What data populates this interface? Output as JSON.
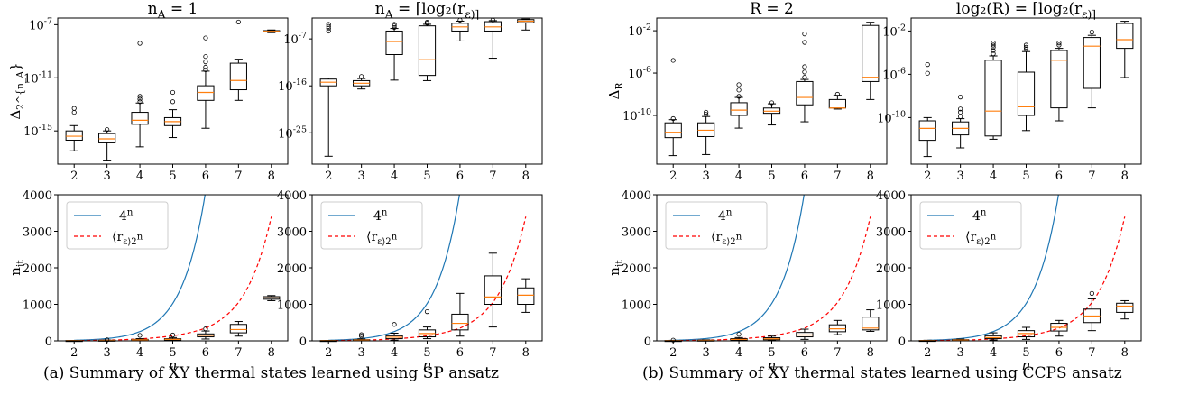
{
  "figure": {
    "captions": [
      "(a) Summary of XY thermal states learned using SP ansatz",
      "(b) Summary of XY thermal states learned using CCPS ansatz"
    ],
    "x_categories": [
      "2",
      "3",
      "4",
      "5",
      "6",
      "7",
      "8"
    ],
    "legend_labels": [
      "4^n",
      "⟨r_ε⟩2^n"
    ],
    "colors": {
      "box": "#000000",
      "median": "#ff7f0e",
      "line_4n": "#1f77b4",
      "line_r": "#ff0000",
      "outlier": "#000000"
    }
  },
  "chart_data": [
    {
      "id": "a-top-left",
      "type": "boxplot",
      "title": "n_A = 1",
      "xlabel": "",
      "ylabel": "Δ_{2^{n_A}}",
      "yscale": "log",
      "ylim_log10": [
        -17.5,
        -6.5
      ],
      "yticks": [
        {
          "exp": -15,
          "label": "10^-15"
        },
        {
          "exp": -11,
          "label": "10^-11"
        },
        {
          "exp": -7,
          "label": "10^-7"
        }
      ],
      "categories": [
        "2",
        "3",
        "4",
        "5",
        "6",
        "7",
        "8"
      ],
      "boxes_log10": [
        {
          "x": 2,
          "whislo": -16.5,
          "q1": -15.7,
          "med": -15.4,
          "q3": -15.0,
          "whishi": -14.6,
          "fliers": [
            -13.3,
            -13.6
          ]
        },
        {
          "x": 3,
          "whislo": -17.2,
          "q1": -15.9,
          "med": -15.6,
          "q3": -15.2,
          "whishi": -15.0,
          "fliers": [
            -14.9
          ]
        },
        {
          "x": 4,
          "whislo": -16.2,
          "q1": -14.5,
          "med": -14.2,
          "q3": -13.6,
          "whishi": -12.9,
          "fliers": [
            -12.8,
            -12.6,
            -12.4,
            -8.4
          ]
        },
        {
          "x": 5,
          "whislo": -15.5,
          "q1": -14.6,
          "med": -14.3,
          "q3": -14.0,
          "whishi": -13.4,
          "fliers": [
            -12.8,
            -12.1
          ]
        },
        {
          "x": 6,
          "whislo": -14.8,
          "q1": -12.7,
          "med": -12.1,
          "q3": -11.6,
          "whishi": -10.5,
          "fliers": [
            -10.4,
            -10.2,
            -9.8,
            -9.4,
            -8.0
          ]
        },
        {
          "x": 7,
          "whislo": -12.7,
          "q1": -11.9,
          "med": -11.2,
          "q3": -9.9,
          "whishi": -9.6,
          "fliers": [
            -6.8
          ]
        },
        {
          "x": 8,
          "whislo": -7.6,
          "q1": -7.55,
          "med": -7.5,
          "q3": -7.45,
          "whishi": -7.4,
          "fliers": []
        }
      ]
    },
    {
      "id": "a-top-right",
      "type": "boxplot",
      "title": "n_A = ⌈log₂(r_ε)⌉",
      "xlabel": "",
      "ylabel": "",
      "yscale": "log",
      "ylim_log10": [
        -31,
        -3
      ],
      "yticks": [
        {
          "exp": -25,
          "label": "10^-25"
        },
        {
          "exp": -16,
          "label": "10^-16"
        },
        {
          "exp": -7,
          "label": "10^-7"
        }
      ],
      "categories": [
        "2",
        "3",
        "4",
        "5",
        "6",
        "7",
        "8"
      ],
      "boxes_log10": [
        {
          "x": 2,
          "whislo": -29.5,
          "q1": -16.0,
          "med": -15.3,
          "q3": -14.7,
          "whishi": -14.5,
          "fliers": [
            -5.5,
            -5.0,
            -4.6,
            -4.2
          ]
        },
        {
          "x": 3,
          "whislo": -16.6,
          "q1": -16.0,
          "med": -15.5,
          "q3": -15.0,
          "whishi": -14.6,
          "fliers": [
            -14.2
          ]
        },
        {
          "x": 4,
          "whislo": -14.9,
          "q1": -10.0,
          "med": -7.5,
          "q3": -5.5,
          "whishi": -5.0,
          "fliers": [
            -4.8,
            -4.5,
            -4.2
          ]
        },
        {
          "x": 5,
          "whislo": -15.0,
          "q1": -14.0,
          "med": -11.0,
          "q3": -4.5,
          "whishi": -4.2,
          "fliers": [
            -4.0,
            -3.8
          ]
        },
        {
          "x": 6,
          "whislo": -7.4,
          "q1": -5.5,
          "med": -4.7,
          "q3": -4.0,
          "whishi": -3.6,
          "fliers": [
            -3.4
          ]
        },
        {
          "x": 7,
          "whislo": -10.7,
          "q1": -5.5,
          "med": -4.7,
          "q3": -3.7,
          "whishi": -3.5,
          "fliers": [
            -3.4
          ]
        },
        {
          "x": 8,
          "whislo": -5.3,
          "q1": -3.9,
          "med": -3.6,
          "q3": -3.3,
          "whishi": -3.2,
          "fliers": []
        }
      ]
    },
    {
      "id": "b-top-left",
      "type": "boxplot",
      "title": "R = 2",
      "xlabel": "",
      "ylabel": "Δ_R",
      "yscale": "log",
      "ylim_log10": [
        -14.6,
        -0.8
      ],
      "yticks": [
        {
          "exp": -10,
          "label": "10^-10"
        },
        {
          "exp": -6,
          "label": "10^-6"
        },
        {
          "exp": -2,
          "label": "10^-2"
        }
      ],
      "categories": [
        "2",
        "3",
        "4",
        "5",
        "6",
        "7",
        "8"
      ],
      "boxes_log10": [
        {
          "x": 2,
          "whislo": -13.8,
          "q1": -12.1,
          "med": -11.6,
          "q3": -10.7,
          "whishi": -10.4,
          "fliers": [
            -10.3,
            -4.8
          ]
        },
        {
          "x": 3,
          "whislo": -13.7,
          "q1": -12.0,
          "med": -11.4,
          "q3": -10.7,
          "whishi": -10.1,
          "fliers": [
            -9.9,
            -9.7
          ]
        },
        {
          "x": 4,
          "whislo": -11.2,
          "q1": -10.0,
          "med": -9.5,
          "q3": -8.8,
          "whishi": -8.3,
          "fliers": [
            -8.2,
            -7.6,
            -7.1
          ]
        },
        {
          "x": 5,
          "whislo": -10.9,
          "q1": -9.8,
          "med": -9.6,
          "q3": -9.3,
          "whishi": -8.9,
          "fliers": [
            -8.8
          ]
        },
        {
          "x": 6,
          "whislo": -10.6,
          "q1": -9.0,
          "med": -8.3,
          "q3": -6.8,
          "whishi": -6.6,
          "fliers": [
            -6.4,
            -5.9,
            -5.4,
            -3.1,
            -2.3
          ]
        },
        {
          "x": 7,
          "whislo": -9.4,
          "q1": -9.3,
          "med": -9.3,
          "q3": -8.5,
          "whishi": -8.1,
          "fliers": [
            -8.0
          ]
        },
        {
          "x": 8,
          "whislo": -8.5,
          "q1": -6.8,
          "med": -6.4,
          "q3": -1.5,
          "whishi": -1.2,
          "fliers": []
        }
      ]
    },
    {
      "id": "b-top-right",
      "type": "boxplot",
      "title": "log₂(R) = ⌈log₂(r_ε)⌉",
      "xlabel": "",
      "ylabel": "",
      "yscale": "log",
      "ylim_log10": [
        -14.3,
        -0.8
      ],
      "yticks": [
        {
          "exp": -10,
          "label": "10^-10"
        },
        {
          "exp": -6,
          "label": "10^-6"
        },
        {
          "exp": -2,
          "label": "10^-2"
        }
      ],
      "categories": [
        "2",
        "3",
        "4",
        "5",
        "6",
        "7",
        "8"
      ],
      "boxes_log10": [
        {
          "x": 2,
          "whislo": -13.6,
          "q1": -12.1,
          "med": -11.0,
          "q3": -10.3,
          "whishi": -10.0,
          "fliers": [
            -5.9,
            -5.1
          ]
        },
        {
          "x": 3,
          "whislo": -12.8,
          "q1": -11.6,
          "med": -11.0,
          "q3": -10.4,
          "whishi": -10.1,
          "fliers": [
            -9.9,
            -9.5,
            -9.2,
            -8.1
          ]
        },
        {
          "x": 4,
          "whislo": -12.0,
          "q1": -11.7,
          "med": -9.4,
          "q3": -4.7,
          "whishi": -4.3,
          "fliers": [
            -4.1,
            -3.8,
            -3.5,
            -3.3,
            -3.1
          ]
        },
        {
          "x": 5,
          "whislo": -11.2,
          "q1": -9.8,
          "med": -9.0,
          "q3": -5.8,
          "whishi": -3.9,
          "fliers": [
            -3.7,
            -3.5,
            -3.3
          ]
        },
        {
          "x": 6,
          "whislo": -10.3,
          "q1": -9.1,
          "med": -4.7,
          "q3": -3.8,
          "whishi": -3.6,
          "fliers": [
            -3.3,
            -3.1
          ]
        },
        {
          "x": 7,
          "whislo": -9.1,
          "q1": -7.3,
          "med": -3.4,
          "q3": -2.6,
          "whishi": -2.4,
          "fliers": [
            -2.1
          ]
        },
        {
          "x": 8,
          "whislo": -6.3,
          "q1": -3.6,
          "med": -2.8,
          "q3": -1.3,
          "whishi": -1.1,
          "fliers": []
        }
      ]
    },
    {
      "id": "a-bottom-left",
      "type": "boxplot+line",
      "title": "",
      "xlabel": "n",
      "ylabel": "n_it",
      "yscale": "linear",
      "ylim": [
        0,
        4000
      ],
      "yticks": [
        0,
        1000,
        2000,
        3000,
        4000
      ],
      "categories": [
        "2",
        "3",
        "4",
        "5",
        "6",
        "7",
        "8"
      ],
      "show_ylabel": true,
      "lines": {
        "4^n": {
          "x_range": [
            2,
            8
          ]
        },
        "<r_eps>2^n": {
          "x": [
            2,
            3,
            4,
            5,
            6,
            7,
            8
          ],
          "y": [
            8,
            20,
            55,
            140,
            350,
            1050,
            3400
          ]
        }
      },
      "boxes": [
        {
          "x": 2,
          "whislo": 2,
          "q1": 4,
          "med": 6,
          "q3": 8,
          "whishi": 12,
          "fliers": []
        },
        {
          "x": 3,
          "whislo": 4,
          "q1": 8,
          "med": 12,
          "q3": 16,
          "whishi": 22,
          "fliers": [
            28
          ]
        },
        {
          "x": 4,
          "whislo": 8,
          "q1": 18,
          "med": 28,
          "q3": 40,
          "whishi": 60,
          "fliers": [
            150
          ]
        },
        {
          "x": 5,
          "whislo": 10,
          "q1": 22,
          "med": 40,
          "q3": 58,
          "whishi": 90,
          "fliers": [
            160
          ]
        },
        {
          "x": 6,
          "whislo": 50,
          "q1": 110,
          "med": 150,
          "q3": 190,
          "whishi": 270,
          "fliers": [
            330
          ]
        },
        {
          "x": 7,
          "whislo": 130,
          "q1": 220,
          "med": 310,
          "q3": 450,
          "whishi": 530,
          "fliers": []
        },
        {
          "x": 8,
          "whislo": 1100,
          "q1": 1140,
          "med": 1175,
          "q3": 1210,
          "whishi": 1240,
          "fliers": []
        }
      ]
    },
    {
      "id": "a-bottom-right",
      "type": "boxplot+line",
      "title": "",
      "xlabel": "n",
      "ylabel": "",
      "yscale": "linear",
      "ylim": [
        0,
        4000
      ],
      "yticks": [
        0,
        1000,
        2000,
        3000,
        4000
      ],
      "categories": [
        "2",
        "3",
        "4",
        "5",
        "6",
        "7",
        "8"
      ],
      "lines": {
        "4^n": {
          "x_range": [
            2,
            8
          ]
        },
        "<r_eps>2^n": {
          "x": [
            2,
            3,
            4,
            5,
            6,
            7,
            8
          ],
          "y": [
            8,
            20,
            55,
            140,
            350,
            1050,
            3400
          ]
        }
      },
      "boxes": [
        {
          "x": 2,
          "whislo": 2,
          "q1": 4,
          "med": 6,
          "q3": 8,
          "whishi": 12,
          "fliers": []
        },
        {
          "x": 3,
          "whislo": 5,
          "q1": 14,
          "med": 22,
          "q3": 32,
          "whishi": 50,
          "fliers": [
            130,
            170
          ]
        },
        {
          "x": 4,
          "whislo": 20,
          "q1": 60,
          "med": 100,
          "q3": 140,
          "whishi": 210,
          "fliers": [
            450
          ]
        },
        {
          "x": 5,
          "whislo": 60,
          "q1": 110,
          "med": 200,
          "q3": 300,
          "whishi": 380,
          "fliers": [
            800
          ]
        },
        {
          "x": 6,
          "whislo": 130,
          "q1": 300,
          "med": 480,
          "q3": 730,
          "whishi": 1300,
          "fliers": []
        },
        {
          "x": 7,
          "whislo": 380,
          "q1": 1000,
          "med": 1200,
          "q3": 1780,
          "whishi": 2400,
          "fliers": []
        },
        {
          "x": 8,
          "whislo": 780,
          "q1": 1000,
          "med": 1250,
          "q3": 1450,
          "whishi": 1700,
          "fliers": []
        }
      ]
    },
    {
      "id": "b-bottom-left",
      "type": "boxplot+line",
      "title": "",
      "xlabel": "n",
      "ylabel": "n_it",
      "yscale": "linear",
      "ylim": [
        0,
        4000
      ],
      "yticks": [
        0,
        1000,
        2000,
        3000,
        4000
      ],
      "categories": [
        "2",
        "3",
        "4",
        "5",
        "6",
        "7",
        "8"
      ],
      "show_ylabel": true,
      "lines": {
        "4^n": {
          "x_range": [
            2,
            8
          ]
        },
        "<r_eps>2^n": {
          "x": [
            2,
            3,
            4,
            5,
            6,
            7,
            8
          ],
          "y": [
            8,
            20,
            55,
            140,
            350,
            1050,
            3400
          ]
        }
      },
      "boxes": [
        {
          "x": 2,
          "whislo": 2,
          "q1": 4,
          "med": 6,
          "q3": 8,
          "whishi": 14,
          "fliers": [
            20
          ]
        },
        {
          "x": 3,
          "whislo": 4,
          "q1": 8,
          "med": 12,
          "q3": 18,
          "whishi": 28,
          "fliers": []
        },
        {
          "x": 4,
          "whislo": 10,
          "q1": 22,
          "med": 38,
          "q3": 60,
          "whishi": 90,
          "fliers": [
            180
          ]
        },
        {
          "x": 5,
          "whislo": 12,
          "q1": 30,
          "med": 55,
          "q3": 85,
          "whishi": 130,
          "fliers": []
        },
        {
          "x": 6,
          "whislo": 40,
          "q1": 110,
          "med": 160,
          "q3": 230,
          "whishi": 320,
          "fliers": []
        },
        {
          "x": 7,
          "whislo": 170,
          "q1": 250,
          "med": 330,
          "q3": 440,
          "whishi": 560,
          "fliers": []
        },
        {
          "x": 8,
          "whislo": 260,
          "q1": 300,
          "med": 350,
          "q3": 650,
          "whishi": 850,
          "fliers": []
        }
      ]
    },
    {
      "id": "b-bottom-right",
      "type": "boxplot+line",
      "title": "",
      "xlabel": "n",
      "ylabel": "",
      "yscale": "linear",
      "ylim": [
        0,
        4000
      ],
      "yticks": [
        0,
        1000,
        2000,
        3000,
        4000
      ],
      "categories": [
        "2",
        "3",
        "4",
        "5",
        "6",
        "7",
        "8"
      ],
      "lines": {
        "4^n": {
          "x_range": [
            2,
            8
          ]
        },
        "<r_eps>2^n": {
          "x": [
            2,
            3,
            4,
            5,
            6,
            7,
            8
          ],
          "y": [
            8,
            20,
            55,
            140,
            350,
            1050,
            3400
          ]
        }
      },
      "boxes": [
        {
          "x": 2,
          "whislo": 2,
          "q1": 4,
          "med": 6,
          "q3": 10,
          "whishi": 16,
          "fliers": []
        },
        {
          "x": 3,
          "whislo": 6,
          "q1": 14,
          "med": 22,
          "q3": 32,
          "whishi": 48,
          "fliers": []
        },
        {
          "x": 4,
          "whislo": 25,
          "q1": 60,
          "med": 90,
          "q3": 140,
          "whishi": 220,
          "fliers": []
        },
        {
          "x": 5,
          "whislo": 40,
          "q1": 110,
          "med": 200,
          "q3": 280,
          "whishi": 370,
          "fliers": []
        },
        {
          "x": 6,
          "whislo": 130,
          "q1": 270,
          "med": 370,
          "q3": 480,
          "whishi": 560,
          "fliers": []
        },
        {
          "x": 7,
          "whislo": 280,
          "q1": 500,
          "med": 680,
          "q3": 870,
          "whishi": 1150,
          "fliers": [
            1300
          ]
        },
        {
          "x": 8,
          "whislo": 600,
          "q1": 780,
          "med": 950,
          "q3": 1030,
          "whishi": 1100,
          "fliers": []
        }
      ]
    }
  ]
}
